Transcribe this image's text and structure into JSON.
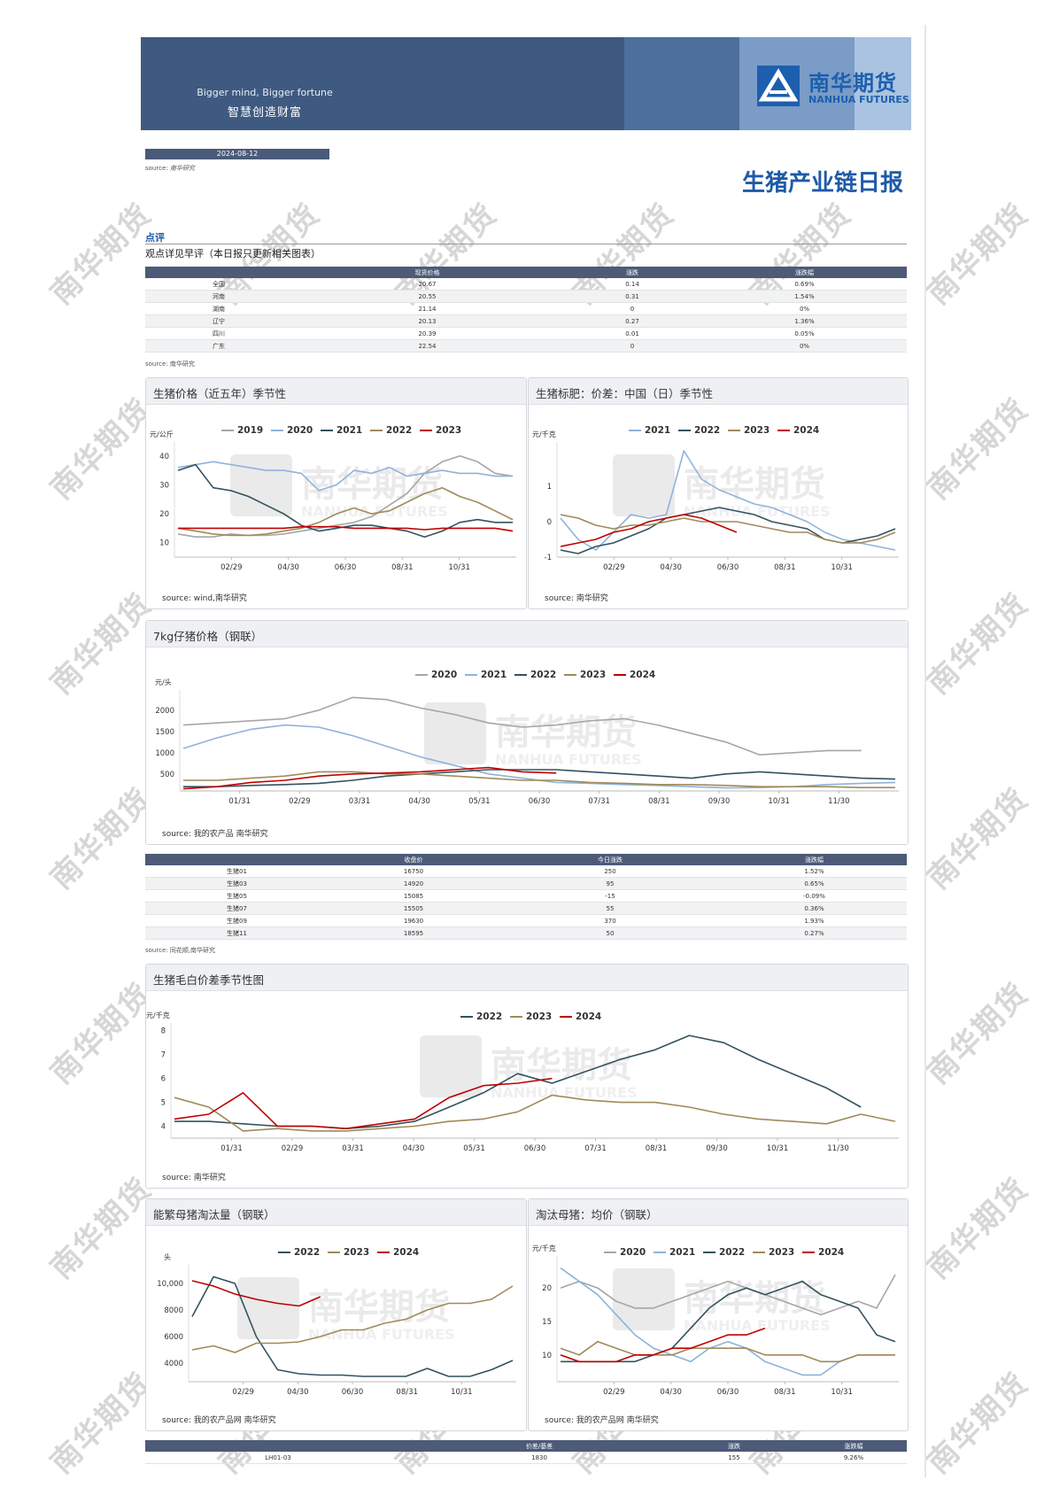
{
  "header": {
    "tagline_en": "Bigger mind, Bigger fortune",
    "tagline_cn": "智慧创造财富",
    "logo_cn": "南华期货",
    "logo_en": "NANHUA FUTURES"
  },
  "date": "2024-08-12",
  "source_label": "source:",
  "source_nanhua": "南华研究",
  "report_title": "生猪产业链日报",
  "review": {
    "label": "点评",
    "text": "观点详见早评（本日报只更新相关图表）"
  },
  "spot_table": {
    "headers": [
      "",
      "现货价格",
      "涨跌",
      "涨跌幅"
    ],
    "rows": [
      [
        "全国",
        "20.67",
        "0.14",
        "0.69%"
      ],
      [
        "河南",
        "20.55",
        "0.31",
        "1.54%"
      ],
      [
        "湖南",
        "21.14",
        "0",
        "0%"
      ],
      [
        "辽宁",
        "20.13",
        "0.27",
        "1.36%"
      ],
      [
        "四川",
        "20.39",
        "0.01",
        "0.05%"
      ],
      [
        "广东",
        "22.54",
        "0",
        "0%"
      ]
    ],
    "source": "source: 南华研究"
  },
  "futures_table": {
    "headers": [
      "",
      "收盘价",
      "今日涨跌",
      "涨跌幅"
    ],
    "rows": [
      [
        "生猪01",
        "16750",
        "250",
        "1.52%"
      ],
      [
        "生猪03",
        "14920",
        "95",
        "0.65%"
      ],
      [
        "生猪05",
        "15085",
        "-15",
        "-0.09%"
      ],
      [
        "生猪07",
        "15505",
        "55",
        "0.36%"
      ],
      [
        "生猪09",
        "19630",
        "370",
        "1.93%"
      ],
      [
        "生猪11",
        "18595",
        "50",
        "0.27%"
      ]
    ],
    "source": "source: 同花顺,南华研究"
  },
  "spread_table": {
    "headers": [
      "",
      "价差/基差",
      "涨跌",
      "涨跌幅"
    ],
    "rows": [
      [
        "LH01-03",
        "1830",
        "155",
        "9.26%"
      ]
    ]
  },
  "watermark": {
    "cn": "南华期货",
    "en": "NANHUA FUTURES"
  },
  "colors": {
    "2019": "#a6a6a6",
    "2020": "#8fb3d9",
    "2021": "#2f4f5f",
    "2022": "#a08a5a",
    "2023": "#c00000",
    "gray": "#a6a6a6",
    "lightblue": "#8fb3d9",
    "dark": "#34525f",
    "tan": "#a08a5a",
    "red": "#c00000"
  },
  "chart_data": [
    {
      "id": "c1",
      "type": "line",
      "title": "生猪价格（近五年）季节性",
      "ylabel": "元/公斤",
      "yticks": [
        10,
        20,
        30,
        40
      ],
      "ylim": [
        5,
        43
      ],
      "xticks": [
        "02/29",
        "04/30",
        "06/30",
        "08/31",
        "10/31"
      ],
      "source": "source:  wind,南华研究",
      "series": [
        {
          "name": "2019",
          "color": "gray",
          "values": [
            13,
            12,
            12,
            13,
            12.5,
            12.5,
            13,
            14,
            15,
            16,
            17,
            19,
            23,
            27,
            34,
            38,
            40,
            38,
            34,
            33
          ]
        },
        {
          "name": "2020",
          "color": "lightblue",
          "values": [
            36,
            37,
            38,
            37,
            36,
            35,
            35,
            34,
            28,
            30,
            35,
            34,
            36,
            33,
            34,
            35,
            34,
            34,
            33,
            33
          ]
        },
        {
          "name": "2021",
          "color": "dark",
          "values": [
            35,
            37,
            29,
            28,
            26,
            23,
            20,
            16,
            14,
            15,
            16,
            16,
            15,
            14,
            12,
            14,
            17,
            18,
            17,
            17
          ]
        },
        {
          "name": "2022",
          "color": "tan",
          "values": [
            15,
            14,
            13,
            12.5,
            12.5,
            13,
            14,
            15,
            17,
            20,
            22,
            20,
            21,
            24,
            27,
            29,
            26,
            24,
            21,
            18
          ]
        },
        {
          "name": "2023",
          "color": "red",
          "values": [
            15,
            15,
            15,
            15,
            15,
            15,
            15,
            15.5,
            15.5,
            15.5,
            15,
            15,
            15,
            15,
            14.5,
            15,
            15,
            15,
            15,
            14
          ]
        }
      ]
    },
    {
      "id": "c2",
      "type": "line",
      "title": "生猪标肥：价差：中国（日）季节性",
      "ylabel": "元/千克",
      "yticks": [
        -1,
        0,
        1
      ],
      "ylim": [
        -1,
        2.1
      ],
      "xticks": [
        "02/29",
        "04/30",
        "06/30",
        "08/31",
        "10/31"
      ],
      "source": "source:  南华研究",
      "series": [
        {
          "name": "2021",
          "color": "lightblue",
          "values": [
            0.1,
            -0.5,
            -0.8,
            -0.3,
            0.2,
            0.1,
            0.2,
            2,
            1.2,
            0.9,
            0.7,
            0.5,
            0.4,
            0.2,
            0,
            -0.3,
            -0.5,
            -0.6,
            -0.7,
            -0.8
          ]
        },
        {
          "name": "2022",
          "color": "dark",
          "values": [
            -0.8,
            -0.9,
            -0.7,
            -0.6,
            -0.4,
            -0.2,
            0.1,
            0.2,
            0.3,
            0.4,
            0.3,
            0.2,
            0,
            -0.1,
            -0.2,
            -0.5,
            -0.6,
            -0.5,
            -0.4,
            -0.2
          ]
        },
        {
          "name": "2023",
          "color": "tan",
          "values": [
            0.2,
            0.1,
            -0.1,
            -0.2,
            -0.1,
            -0.1,
            0,
            0.1,
            0,
            0,
            0,
            -0.1,
            -0.2,
            -0.3,
            -0.3,
            -0.5,
            -0.6,
            -0.6,
            -0.5,
            -0.3
          ]
        },
        {
          "name": "2024",
          "color": "red",
          "values": [
            -0.7,
            -0.6,
            -0.5,
            -0.3,
            -0.2,
            0,
            0.1,
            0.2,
            0.1,
            -0.1,
            -0.3,
            null,
            null,
            null,
            null,
            null,
            null,
            null,
            null,
            null
          ]
        }
      ]
    },
    {
      "id": "c3",
      "type": "line",
      "title": "7kg仔猪价格（钢联）",
      "ylabel": "元/头",
      "yticks": [
        500,
        1000,
        1500,
        2000
      ],
      "ylim": [
        100,
        2350
      ],
      "xticks": [
        "01/31",
        "02/29",
        "03/31",
        "04/30",
        "05/31",
        "06/30",
        "07/31",
        "08/31",
        "09/30",
        "10/31",
        "11/30"
      ],
      "source": "source:  我的农产品 南华研究",
      "series": [
        {
          "name": "2020",
          "color": "gray",
          "values": [
            1650,
            1700,
            1750,
            1800,
            2000,
            2300,
            2250,
            2050,
            1900,
            1700,
            1600,
            1650,
            1750,
            1800,
            1650,
            1450,
            1250,
            950,
            1000,
            1050,
            1050,
            null
          ]
        },
        {
          "name": "2021",
          "color": "lightblue",
          "values": [
            1100,
            1350,
            1550,
            1650,
            1600,
            1400,
            1150,
            900,
            700,
            500,
            400,
            300,
            280,
            250,
            230,
            200,
            170,
            180,
            200,
            250,
            280,
            300
          ]
        },
        {
          "name": "2022",
          "color": "dark",
          "values": [
            200,
            200,
            230,
            250,
            280,
            350,
            450,
            500,
            550,
            600,
            600,
            600,
            550,
            500,
            450,
            400,
            500,
            550,
            500,
            450,
            400,
            380
          ]
        },
        {
          "name": "2023",
          "color": "tan",
          "values": [
            350,
            350,
            400,
            450,
            550,
            550,
            500,
            500,
            450,
            400,
            350,
            350,
            300,
            280,
            250,
            250,
            230,
            200,
            200,
            200,
            180,
            180
          ]
        },
        {
          "name": "2024",
          "color": "red",
          "values": [
            150,
            200,
            300,
            350,
            450,
            500,
            520,
            550,
            600,
            650,
            550,
            520,
            null,
            null,
            null,
            null,
            null,
            null,
            null,
            null,
            null,
            null
          ]
        }
      ]
    },
    {
      "id": "c4",
      "type": "line",
      "title": "生猪毛白价差季节性图",
      "ylabel": "元/千克",
      "yticks": [
        4,
        5,
        6,
        7,
        8
      ],
      "ylim": [
        3.5,
        8.1
      ],
      "xticks": [
        "01/31",
        "02/29",
        "03/31",
        "04/30",
        "05/31",
        "06/30",
        "07/31",
        "08/31",
        "09/30",
        "10/31",
        "11/30"
      ],
      "source": "source:  南华研究",
      "series": [
        {
          "name": "2022",
          "color": "dark",
          "values": [
            4.2,
            4.2,
            4.1,
            4,
            4,
            3.9,
            4,
            4.2,
            4.8,
            5.4,
            6.2,
            5.8,
            6.3,
            6.8,
            7.2,
            7.8,
            7.5,
            6.8,
            6.2,
            5.6,
            4.8,
            null
          ]
        },
        {
          "name": "2023",
          "color": "tan",
          "values": [
            5.2,
            4.8,
            3.8,
            3.9,
            3.8,
            3.8,
            3.9,
            4,
            4.2,
            4.3,
            4.6,
            5.3,
            5.1,
            5,
            5,
            4.8,
            4.5,
            4.3,
            4.2,
            4.1,
            4.5,
            4.2
          ]
        },
        {
          "name": "2024",
          "color": "red",
          "values": [
            4.3,
            4.5,
            5.4,
            4,
            4,
            3.9,
            4.1,
            4.3,
            5.2,
            5.7,
            5.8,
            6,
            null,
            null,
            null,
            null,
            null,
            null,
            null,
            null,
            null,
            null
          ]
        }
      ]
    },
    {
      "id": "c5",
      "type": "line",
      "title": "能繁母猪淘汰量（钢联）",
      "ylabel": "头",
      "yticks": [
        4000,
        6000,
        8000,
        10000
      ],
      "yticklabels": [
        "4000",
        "6000",
        "8000",
        "10,000"
      ],
      "ylim": [
        2600,
        11000
      ],
      "xticks": [
        "02/29",
        "04/30",
        "06/30",
        "08/31",
        "10/31"
      ],
      "source": "source:  我的农产品网 南华研究",
      "series": [
        {
          "name": "2022",
          "color": "dark",
          "values": [
            7500,
            10500,
            10000,
            6000,
            3500,
            3200,
            3100,
            3100,
            3000,
            3000,
            3000,
            3600,
            3000,
            3000,
            3500,
            4200
          ]
        },
        {
          "name": "2023",
          "color": "tan",
          "values": [
            5000,
            5300,
            4800,
            5500,
            5500,
            5600,
            6000,
            6500,
            6500,
            7000,
            7300,
            8000,
            8500,
            8500,
            8800,
            9800
          ]
        },
        {
          "name": "2024",
          "color": "red",
          "values": [
            10200,
            9800,
            9200,
            8800,
            8500,
            8300,
            9000,
            null,
            null,
            null,
            null,
            null,
            null,
            null,
            null,
            null
          ]
        }
      ]
    },
    {
      "id": "c6",
      "type": "line",
      "title": "淘汰母猪：均价（钢联）",
      "ylabel": "元/千克",
      "yticks": [
        10,
        15,
        20
      ],
      "ylim": [
        6,
        24
      ],
      "xticks": [
        "02/29",
        "04/30",
        "06/30",
        "08/31",
        "10/31"
      ],
      "source": "source:  我的农产品网 南华研究",
      "series": [
        {
          "name": "2020",
          "color": "gray",
          "values": [
            20,
            21,
            20,
            18,
            17,
            17,
            18,
            19,
            20,
            21,
            20,
            19,
            18,
            17,
            16,
            17,
            18,
            17,
            22
          ]
        },
        {
          "name": "2021",
          "color": "lightblue",
          "values": [
            23,
            21,
            19,
            16,
            13,
            11,
            10,
            9,
            11,
            12,
            11,
            9,
            8,
            7,
            7,
            9,
            10,
            10,
            10
          ]
        },
        {
          "name": "2022",
          "color": "dark",
          "values": [
            9,
            9,
            9,
            9,
            9,
            10,
            11,
            14,
            17,
            19,
            20,
            19,
            20,
            21,
            19,
            18,
            17,
            13,
            12
          ]
        },
        {
          "name": "2023",
          "color": "tan",
          "values": [
            11,
            10,
            12,
            11,
            10,
            10,
            10,
            11,
            11,
            11,
            11,
            10,
            10,
            10,
            9,
            9,
            10,
            10,
            10
          ]
        },
        {
          "name": "2024",
          "color": "red",
          "values": [
            10,
            9,
            9,
            9,
            10,
            10,
            11,
            11,
            12,
            13,
            13,
            14,
            null,
            null,
            null,
            null,
            null,
            null,
            null
          ]
        }
      ]
    }
  ]
}
